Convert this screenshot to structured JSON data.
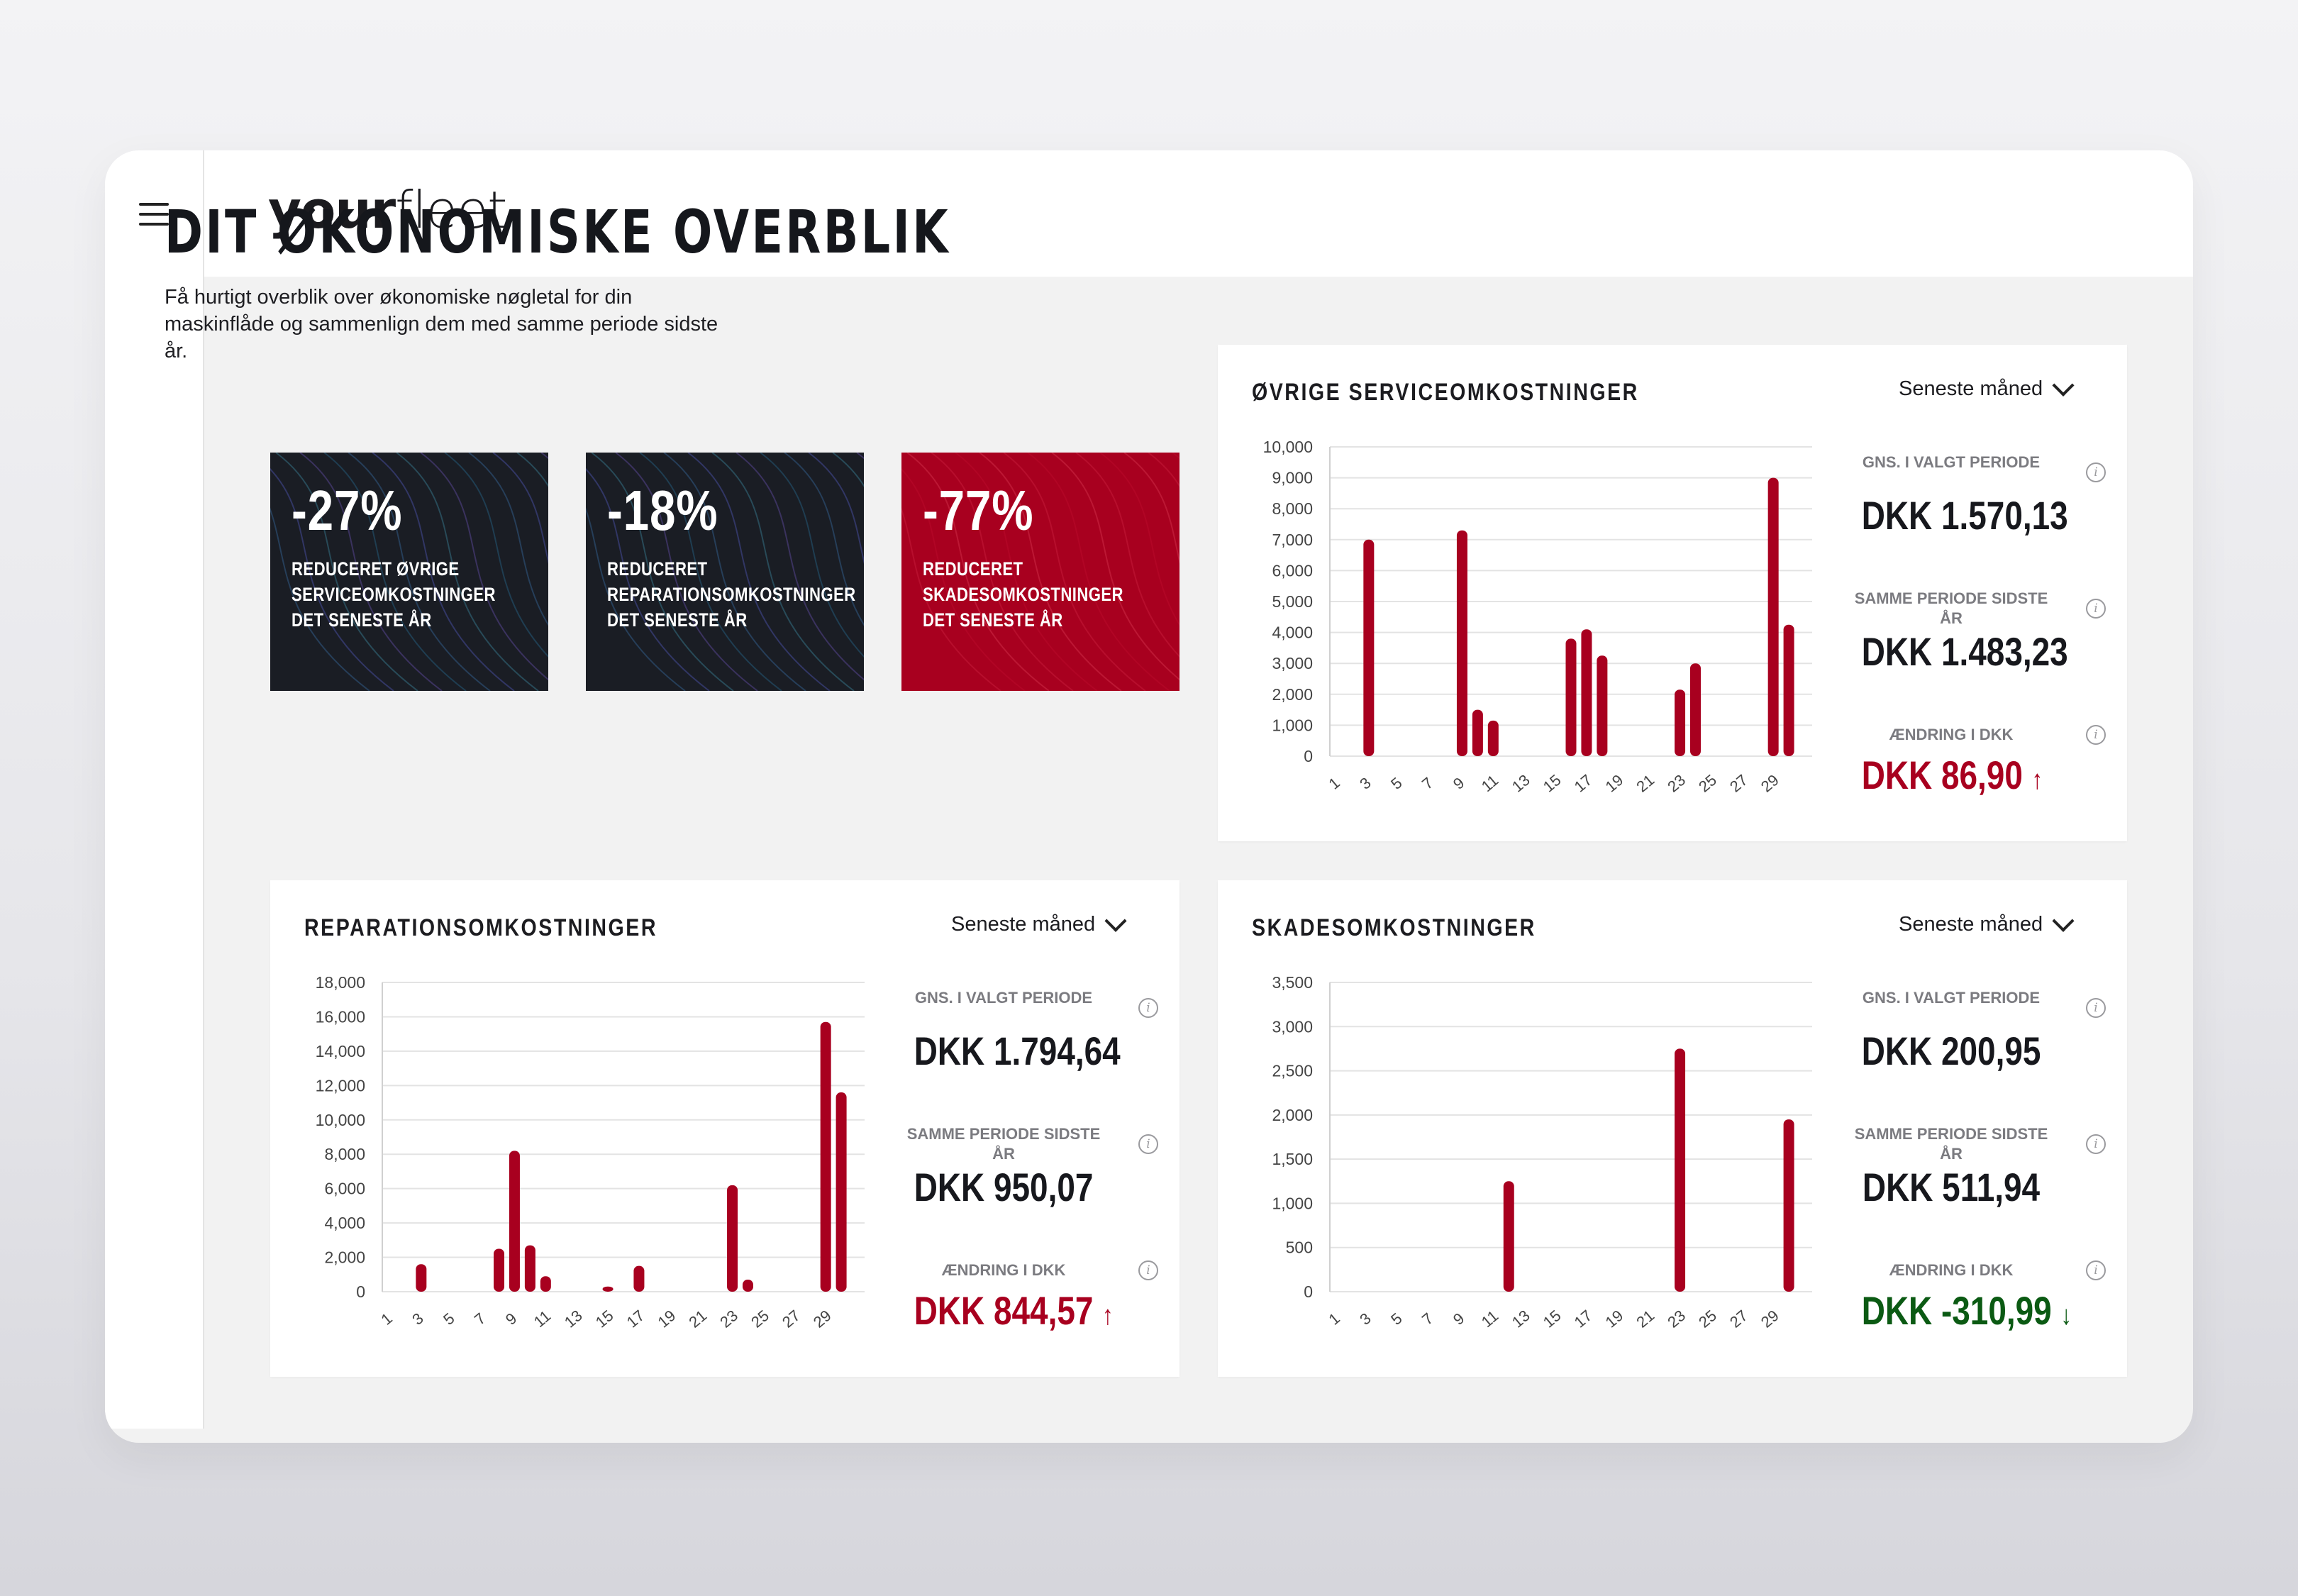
{
  "app": {
    "logo_bold": "your",
    "logo_light": "fleet"
  },
  "header": {
    "title": "DIT ØKONOMISKE OVERBLIK",
    "intro": "Få hurtigt overblik over økonomiske nøgletal for din maskinflåde og sammenlign dem med samme periode sidste år."
  },
  "kpis": [
    {
      "value": "-27%",
      "label": "REDUCERET ØVRIGE SERVICEOMKOSTNINGER DET SENESTE ÅR",
      "theme": "dark"
    },
    {
      "value": "-18%",
      "label": "REDUCERET REPARATIONSOMKOSTNINGER DET SENESTE ÅR",
      "theme": "dark"
    },
    {
      "value": "-77%",
      "label": "REDUCERET SKADESOMKOSTNINGER DET SENESTE ÅR",
      "theme": "red"
    }
  ],
  "colors": {
    "bar": "#a8001f",
    "up": "#a8001f",
    "down": "#0b5a13",
    "dark": "#1a1d24"
  },
  "cards": {
    "service": {
      "title": "ØVRIGE SERVICEOMKOSTNINGER",
      "period": "Seneste måned",
      "avg_label": "GNS. I VALGT PERIODE",
      "avg_value": "DKK 1.570,13",
      "last_label": "SAMME PERIODE SIDSTE ÅR",
      "last_value": "DKK 1.483,23",
      "change_label": "ÆNDRING I DKK",
      "change_value": "DKK 86,90",
      "change_arrow": "↑",
      "change_dir": "up"
    },
    "repair": {
      "title": "REPARATIONSOMKOSTNINGER",
      "period": "Seneste måned",
      "avg_label": "GNS. I VALGT PERIODE",
      "avg_value": "DKK 1.794,64",
      "last_label": "SAMME PERIODE SIDSTE ÅR",
      "last_value": "DKK 950,07",
      "change_label": "ÆNDRING I DKK",
      "change_value": "DKK 844,57",
      "change_arrow": "↑",
      "change_dir": "up"
    },
    "damage": {
      "title": "SKADESOMKOSTNINGER",
      "period": "Seneste måned",
      "avg_label": "GNS. I VALGT PERIODE",
      "avg_value": "DKK 200,95",
      "last_label": "SAMME PERIODE SIDSTE ÅR",
      "last_value": "DKK 511,94",
      "change_label": "ÆNDRING I DKK",
      "change_value": "DKK -310,99",
      "change_arrow": "↓",
      "change_dir": "down"
    }
  },
  "chart_data": [
    {
      "type": "bar",
      "title": "ØVRIGE SERVICEOMKOSTNINGER",
      "x_ticks": [
        "1",
        "3",
        "5",
        "7",
        "9",
        "11",
        "13",
        "15",
        "17",
        "19",
        "21",
        "23",
        "25",
        "27",
        "29"
      ],
      "ylim": [
        0,
        10000
      ],
      "y_ticks": [
        "0",
        "1,000",
        "2,000",
        "3,000",
        "4,000",
        "5,000",
        "6,000",
        "7,000",
        "8,000",
        "9,000",
        "10,000"
      ],
      "grid": true,
      "points": [
        {
          "x": 3,
          "y": 7000
        },
        {
          "x": 9,
          "y": 7300
        },
        {
          "x": 10,
          "y": 1500
        },
        {
          "x": 11,
          "y": 1150
        },
        {
          "x": 16,
          "y": 3800
        },
        {
          "x": 17,
          "y": 4100
        },
        {
          "x": 18,
          "y": 3250
        },
        {
          "x": 23,
          "y": 2150
        },
        {
          "x": 24,
          "y": 3000
        },
        {
          "x": 29,
          "y": 9000
        },
        {
          "x": 30,
          "y": 4250
        }
      ]
    },
    {
      "type": "bar",
      "title": "REPARATIONSOMKOSTNINGER",
      "x_ticks": [
        "1",
        "3",
        "5",
        "7",
        "9",
        "11",
        "13",
        "15",
        "17",
        "19",
        "21",
        "23",
        "25",
        "27",
        "29"
      ],
      "ylim": [
        0,
        18000
      ],
      "y_ticks": [
        "0",
        "2,000",
        "4,000",
        "6,000",
        "8,000",
        "10,000",
        "12,000",
        "14,000",
        "16,000",
        "18,000"
      ],
      "grid": true,
      "points": [
        {
          "x": 3,
          "y": 1600
        },
        {
          "x": 8,
          "y": 2500
        },
        {
          "x": 9,
          "y": 8200
        },
        {
          "x": 10,
          "y": 2700
        },
        {
          "x": 11,
          "y": 900
        },
        {
          "x": 15,
          "y": 300
        },
        {
          "x": 17,
          "y": 1500
        },
        {
          "x": 23,
          "y": 6200
        },
        {
          "x": 24,
          "y": 700
        },
        {
          "x": 29,
          "y": 15700
        },
        {
          "x": 30,
          "y": 11600
        }
      ]
    },
    {
      "type": "bar",
      "title": "SKADESOMKOSTNINGER",
      "x_ticks": [
        "1",
        "3",
        "5",
        "7",
        "9",
        "11",
        "13",
        "15",
        "17",
        "19",
        "21",
        "23",
        "25",
        "27",
        "29"
      ],
      "ylim": [
        0,
        3500
      ],
      "y_ticks": [
        "0",
        "500",
        "1,000",
        "1,500",
        "2,000",
        "2,500",
        "3,000",
        "3,500"
      ],
      "grid": true,
      "points": [
        {
          "x": 12,
          "y": 1250
        },
        {
          "x": 23,
          "y": 2750
        },
        {
          "x": 30,
          "y": 1950
        }
      ]
    }
  ]
}
